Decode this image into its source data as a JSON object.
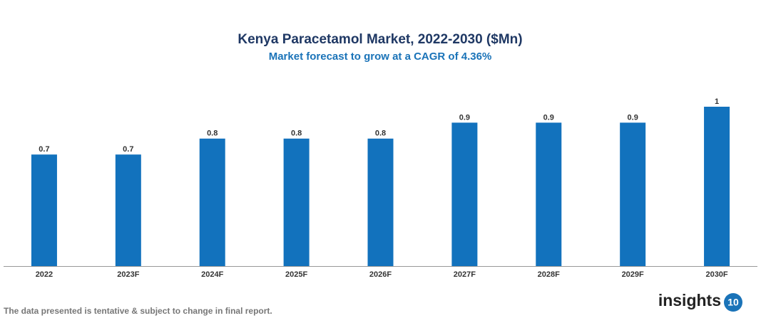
{
  "chart_data": {
    "type": "bar",
    "title": "Kenya Paracetamol Market, 2022-2030 ($Mn)",
    "subtitle": "Market forecast to grow at a CAGR of 4.36%",
    "categories": [
      "2022",
      "2023F",
      "2024F",
      "2025F",
      "2026F",
      "2027F",
      "2028F",
      "2029F",
      "2030F"
    ],
    "values": [
      0.7,
      0.7,
      0.8,
      0.8,
      0.8,
      0.9,
      0.9,
      0.9,
      1
    ],
    "color": "#1272bd"
  },
  "footnote": "The data presented is tentative & subject to change in final report.",
  "brand": {
    "name": "insights",
    "number": "10"
  }
}
